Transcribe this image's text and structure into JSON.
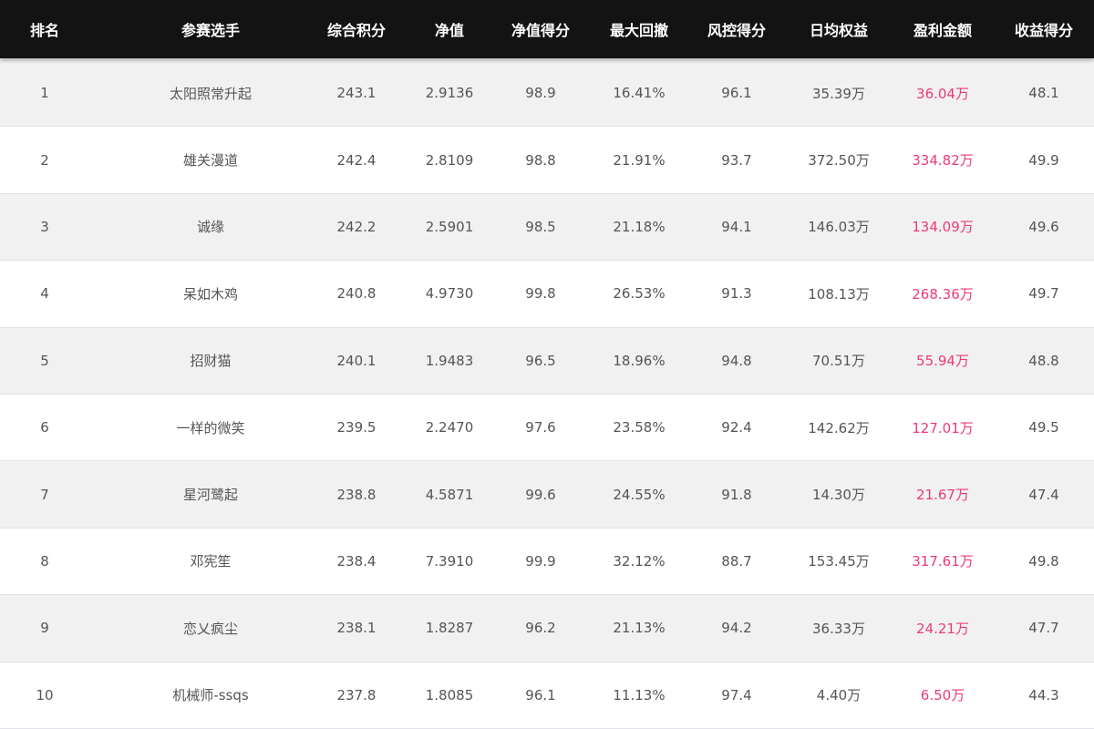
{
  "header": [
    "排名",
    "参赛选手",
    "综合积分",
    "净值",
    "净值得分",
    "最大回撤",
    "风控得分",
    "日均权益",
    "盈利金额",
    "收益得分"
  ],
  "colors": {
    "header_bg": "#131313",
    "profit": "#ec3a78",
    "stripe": "#f1f1f1"
  },
  "rows": [
    [
      "1",
      "太阳照常升起",
      "243.1",
      "2.9136",
      "98.9",
      "16.41%",
      "96.1",
      "35.39万",
      "36.04万",
      "48.1"
    ],
    [
      "2",
      "雄关漫道",
      "242.4",
      "2.8109",
      "98.8",
      "21.91%",
      "93.7",
      "372.50万",
      "334.82万",
      "49.9"
    ],
    [
      "3",
      "诚缘",
      "242.2",
      "2.5901",
      "98.5",
      "21.18%",
      "94.1",
      "146.03万",
      "134.09万",
      "49.6"
    ],
    [
      "4",
      "呆如木鸡",
      "240.8",
      "4.9730",
      "99.8",
      "26.53%",
      "91.3",
      "108.13万",
      "268.36万",
      "49.7"
    ],
    [
      "5",
      "招财猫",
      "240.1",
      "1.9483",
      "96.5",
      "18.96%",
      "94.8",
      "70.51万",
      "55.94万",
      "48.8"
    ],
    [
      "6",
      "一样的微笑",
      "239.5",
      "2.2470",
      "97.6",
      "23.58%",
      "92.4",
      "142.62万",
      "127.01万",
      "49.5"
    ],
    [
      "7",
      "星河鹭起",
      "238.8",
      "4.5871",
      "99.6",
      "24.55%",
      "91.8",
      "14.30万",
      "21.67万",
      "47.4"
    ],
    [
      "8",
      "邓宪笙",
      "238.4",
      "7.3910",
      "99.9",
      "32.12%",
      "88.7",
      "153.45万",
      "317.61万",
      "49.8"
    ],
    [
      "9",
      "恋乂疯尘",
      "238.1",
      "1.8287",
      "96.2",
      "21.13%",
      "94.2",
      "36.33万",
      "24.21万",
      "47.7"
    ],
    [
      "10",
      "机械师-ssqs",
      "237.8",
      "1.8085",
      "96.1",
      "11.13%",
      "97.4",
      "4.40万",
      "6.50万",
      "44.3"
    ]
  ]
}
